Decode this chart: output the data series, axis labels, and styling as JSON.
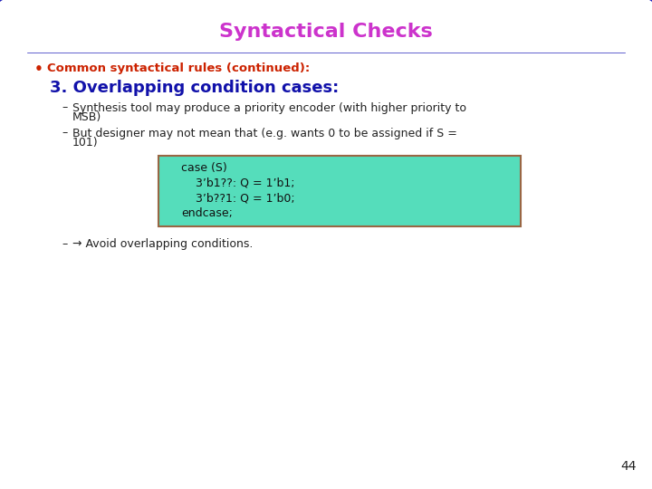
{
  "title": "Syntactical Checks",
  "title_color": "#cc33cc",
  "title_fontsize": 16,
  "background_color": "#f0f0f8",
  "border_color": "#2222bb",
  "bullet_color": "#cc2200",
  "bullet_text": "Common syntactical rules (continued):",
  "heading_text": "3. Overlapping condition cases:",
  "heading_color": "#1111aa",
  "heading_fontsize": 13,
  "dash_item1_line1": "Synthesis tool may produce a priority encoder (with higher priority to",
  "dash_item1_line2": "MSB)",
  "dash_item2_line1": "But designer may not mean that (e.g. wants 0 to be assigned if S =",
  "dash_item2_line2": "101)",
  "code_bg_color": "#55ddbb",
  "code_border_color": "#996644",
  "code_line1": "case (S)",
  "code_line2": "    3’b1??: Q = 1’b1;",
  "code_line3": "    3’b??1: Q = 1’b0;",
  "code_line4": "endcase;",
  "arrow_text": "→ Avoid overlapping conditions.",
  "page_number": "44",
  "text_color": "#222222",
  "body_fontsize": 9,
  "code_fontsize": 9
}
